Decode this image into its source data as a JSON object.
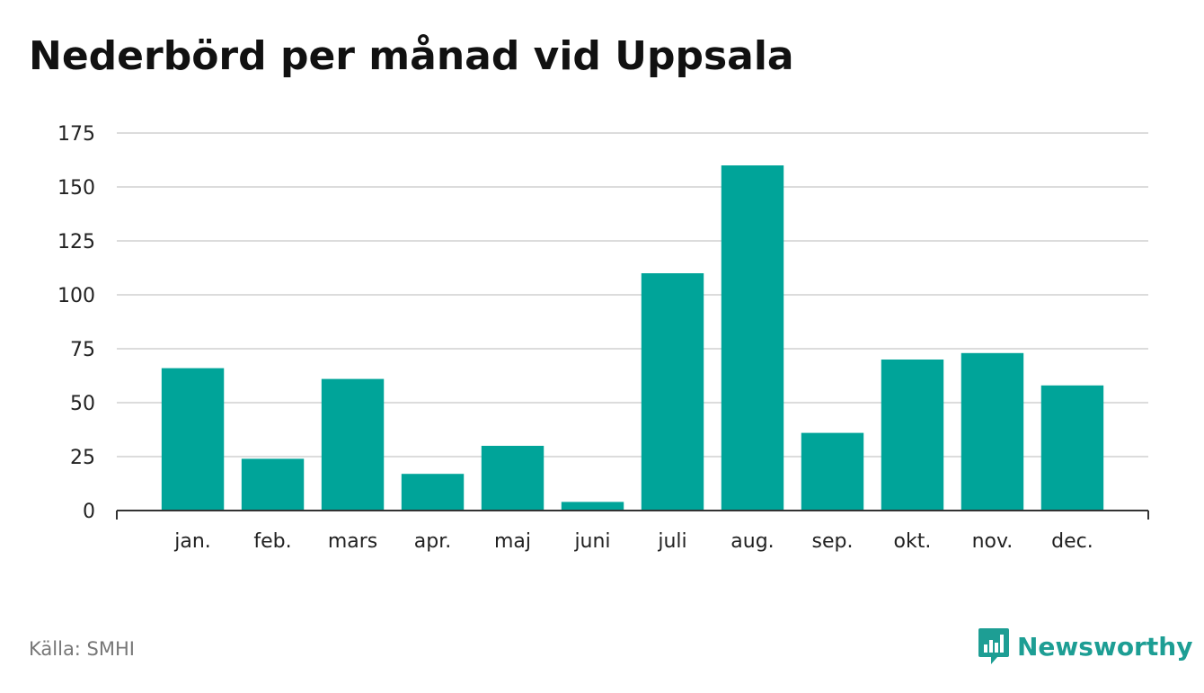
{
  "title": "Nederbörd per månad vid Uppsala",
  "source": "Källa: SMHI",
  "brand": {
    "name": "Newsworthy",
    "icon": "bar-chart-speech-bubble-icon"
  },
  "colors": {
    "bar": "#00a499",
    "grid": "#dcdcdc",
    "axis": "#333333",
    "brand": "#1d9e94",
    "text": "#222222"
  },
  "chart_data": {
    "type": "bar",
    "title": "Nederbörd per månad vid Uppsala",
    "xlabel": "",
    "ylabel": "",
    "categories": [
      "jan.",
      "feb.",
      "mars",
      "apr.",
      "maj",
      "juni",
      "juli",
      "aug.",
      "sep.",
      "okt.",
      "nov.",
      "dec."
    ],
    "values": [
      66,
      24,
      61,
      17,
      30,
      4,
      110,
      160,
      36,
      70,
      73,
      58
    ],
    "ylim": [
      0,
      175
    ],
    "yticks": [
      0,
      25,
      50,
      75,
      100,
      125,
      150,
      175
    ],
    "grid": true,
    "legend": "none"
  }
}
